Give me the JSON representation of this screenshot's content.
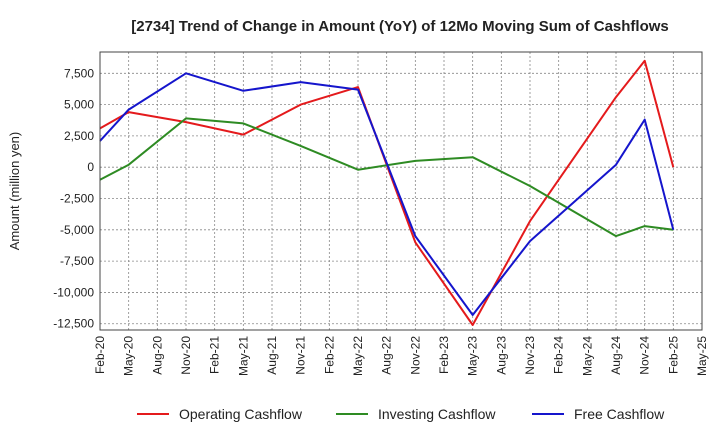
{
  "chart_data": {
    "type": "line",
    "title": "[2734]  Trend of Change in Amount (YoY) of 12Mo Moving Sum of Cashflows",
    "xlabel": "",
    "ylabel": "Amount (million yen)",
    "ylim": [
      -13000,
      9200
    ],
    "yticks": [
      7500,
      5000,
      2500,
      0,
      -2500,
      -5000,
      -7500,
      -10000,
      -12500
    ],
    "ytick_labels": [
      "7,500",
      "5,000",
      "2,500",
      "0",
      "-2,500",
      "-5,000",
      "-7,500",
      "-10,000",
      "-12,500"
    ],
    "x_ticks": [
      "Feb-20",
      "May-20",
      "Aug-20",
      "Nov-20",
      "Feb-21",
      "May-21",
      "Aug-21",
      "Nov-21",
      "Feb-22",
      "May-22",
      "Aug-22",
      "Nov-22",
      "Feb-23",
      "May-23",
      "Aug-23",
      "Nov-23",
      "Feb-24",
      "May-24",
      "Aug-24",
      "Nov-24",
      "Feb-25",
      "May-25"
    ],
    "grid": true,
    "legend_position": "bottom",
    "series": [
      {
        "name": "Operating Cashflow",
        "color": "#e41a1c",
        "points": [
          [
            0,
            3100
          ],
          [
            1,
            4400
          ],
          [
            3,
            3600
          ],
          [
            5,
            2600
          ],
          [
            7,
            5000
          ],
          [
            9,
            6400
          ],
          [
            11,
            -6000
          ],
          [
            13,
            -12600
          ],
          [
            15,
            -4300
          ],
          [
            18,
            5600
          ],
          [
            19,
            8500
          ],
          [
            20,
            0
          ]
        ]
      },
      {
        "name": "Investing Cashflow",
        "color": "#2e8b23",
        "points": [
          [
            0,
            -1000
          ],
          [
            1,
            200
          ],
          [
            3,
            3900
          ],
          [
            5,
            3500
          ],
          [
            7,
            1700
          ],
          [
            9,
            -200
          ],
          [
            11,
            500
          ],
          [
            13,
            800
          ],
          [
            15,
            -1500
          ],
          [
            18,
            -5500
          ],
          [
            19,
            -4700
          ],
          [
            20,
            -5000
          ]
        ]
      },
      {
        "name": "Free Cashflow",
        "color": "#1515cc",
        "points": [
          [
            0,
            2100
          ],
          [
            1,
            4600
          ],
          [
            3,
            7500
          ],
          [
            5,
            6100
          ],
          [
            7,
            6800
          ],
          [
            9,
            6200
          ],
          [
            11,
            -5500
          ],
          [
            13,
            -11800
          ],
          [
            15,
            -5900
          ],
          [
            18,
            200
          ],
          [
            19,
            3800
          ],
          [
            20,
            -5000
          ]
        ]
      }
    ]
  }
}
